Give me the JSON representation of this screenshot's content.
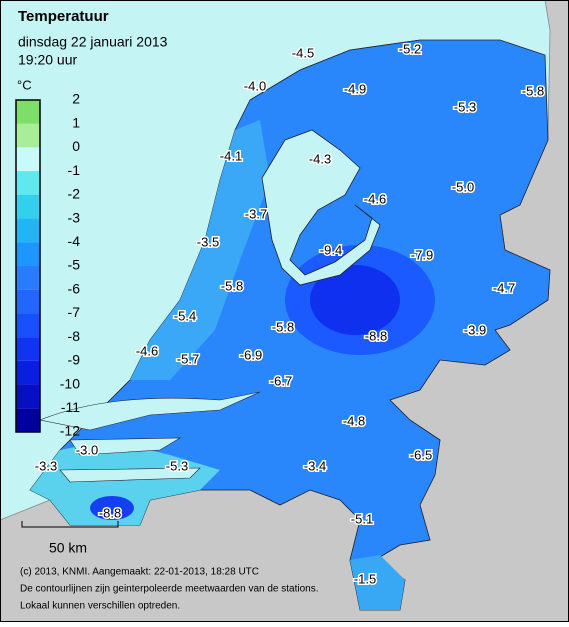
{
  "header": {
    "title": "Temperatuur",
    "date": "dinsdag 22 januari 2013",
    "time": "19:20 uur"
  },
  "legend": {
    "unit": "°C",
    "ticks": [
      2,
      1,
      0,
      -1,
      -2,
      -3,
      -4,
      -5,
      -6,
      -7,
      -8,
      -9,
      -10,
      -11,
      -12
    ],
    "colors": [
      "#7ddf6a",
      "#a8ee98",
      "#c8fafa",
      "#5fe8ee",
      "#33d0ee",
      "#22b4f4",
      "#1e96ff",
      "#2a7cff",
      "#2266ff",
      "#1650ff",
      "#1034f0",
      "#0a1ee0",
      "#0610c2",
      "#0000a0"
    ]
  },
  "stations": [
    "-4.5",
    "-5.2",
    "-4.0",
    "-4.9",
    "-5.3",
    "-5.8",
    "-4.1",
    "-4.3",
    "-4.6",
    "-5.0",
    "-3.7",
    "-3.5",
    "-9.4",
    "-7.9",
    "-4.7",
    "-5.8",
    "-5.4",
    "-5.8",
    "-8.8",
    "-3.9",
    "-4.6",
    "-5.7",
    "-6.9",
    "-6.7",
    "-4.8",
    "-6.5",
    "-3.0",
    "-3.3",
    "-5.3",
    "-3.4",
    "-5.1",
    "-8.8",
    "-1.5"
  ],
  "scale": {
    "label": "50 km"
  },
  "footer": [
    "(c) 2013, KNMI. Aangemaakt: 22-01-2013, 18:28 UTC",
    "De contourlijnen zijn geinterpoleerde meetwaarden van de stations.",
    "Lokaal kunnen verschillen optreden."
  ]
}
